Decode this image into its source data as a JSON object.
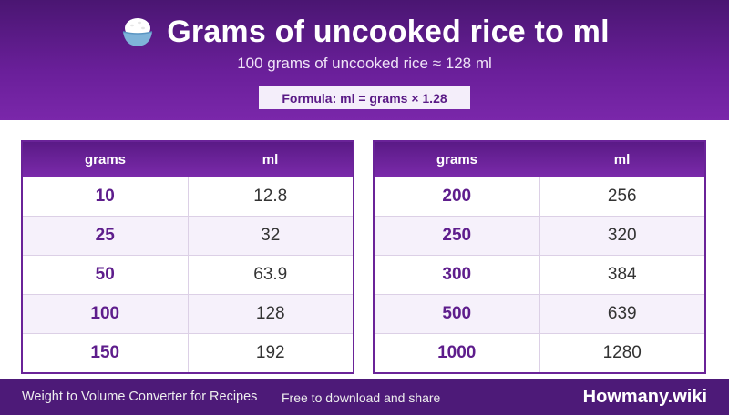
{
  "header": {
    "icon": "rice-bowl-icon",
    "title": "Grams of uncooked rice to ml",
    "subtitle": "100 grams of uncooked rice ≈ 128 ml",
    "formula": "Formula: ml = grams × 1.28"
  },
  "columns": {
    "grams": "grams",
    "ml": "ml"
  },
  "tables": [
    {
      "rows": [
        {
          "grams": "10",
          "ml": "12.8"
        },
        {
          "grams": "25",
          "ml": "32"
        },
        {
          "grams": "50",
          "ml": "63.9"
        },
        {
          "grams": "100",
          "ml": "128"
        },
        {
          "grams": "150",
          "ml": "192"
        }
      ]
    },
    {
      "rows": [
        {
          "grams": "200",
          "ml": "256"
        },
        {
          "grams": "250",
          "ml": "320"
        },
        {
          "grams": "300",
          "ml": "384"
        },
        {
          "grams": "500",
          "ml": "639"
        },
        {
          "grams": "1000",
          "ml": "1280"
        }
      ]
    }
  ],
  "footer": {
    "left": "Weight to Volume Converter for Recipes",
    "middle": "Free to download and share",
    "brand": "Howmany.wiki"
  },
  "colors": {
    "primary": "#5a1a86",
    "header_bg": "#6a1f9a",
    "footer_bg": "#4d1a78",
    "alt_row": "#f6f1fb"
  }
}
